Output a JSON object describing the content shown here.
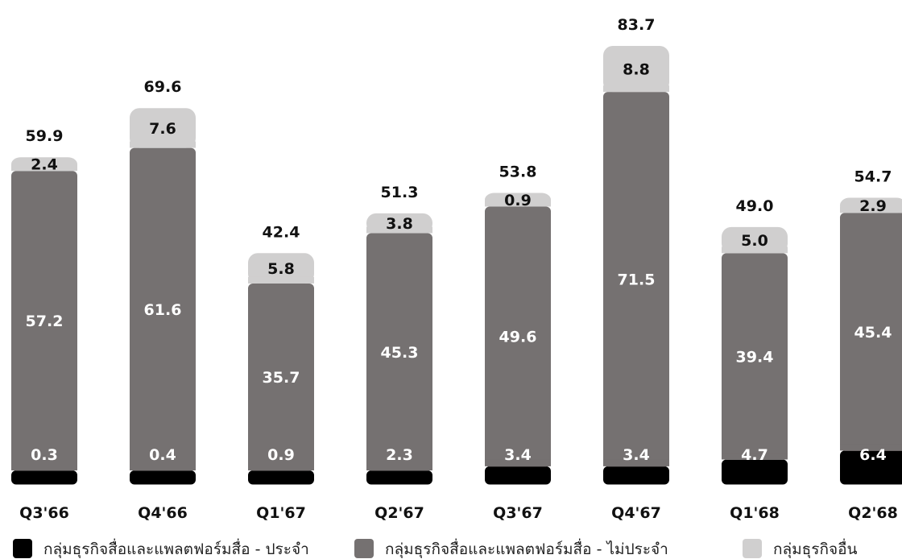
{
  "chart_data": {
    "type": "bar",
    "stacked": true,
    "categories": [
      "Q3'66",
      "Q4'66",
      "Q1'67",
      "Q2'67",
      "Q3'67",
      "Q4'67",
      "Q1'68",
      "Q2'68"
    ],
    "series": [
      {
        "name": "กลุ่มธุรกิจสื่อและแพลตฟอร์มสื่อ - ประจำ",
        "color": "#000000",
        "label_color": "#ffffff",
        "values": [
          0.3,
          0.4,
          0.9,
          2.3,
          3.4,
          3.4,
          4.7,
          6.4
        ]
      },
      {
        "name": "กลุ่มธุรกิจสื่อและแพลตฟอร์มสื่อ - ไม่ประจำ",
        "color": "#757171",
        "label_color": "#ffffff",
        "values": [
          57.2,
          61.6,
          35.7,
          45.3,
          49.6,
          71.5,
          39.4,
          45.4
        ]
      },
      {
        "name": "กลุ่มธุรกิจอื่น",
        "color": "#d0cfcf",
        "label_color": "#111111",
        "values": [
          2.4,
          7.6,
          5.8,
          3.8,
          0.9,
          8.8,
          5.0,
          2.9
        ]
      }
    ],
    "totals": [
      "59.9",
      "69.6",
      "42.4",
      "51.3",
      "53.8",
      "83.7",
      "49.0",
      "54.7"
    ],
    "grid": false,
    "legend_position": "bottom"
  }
}
